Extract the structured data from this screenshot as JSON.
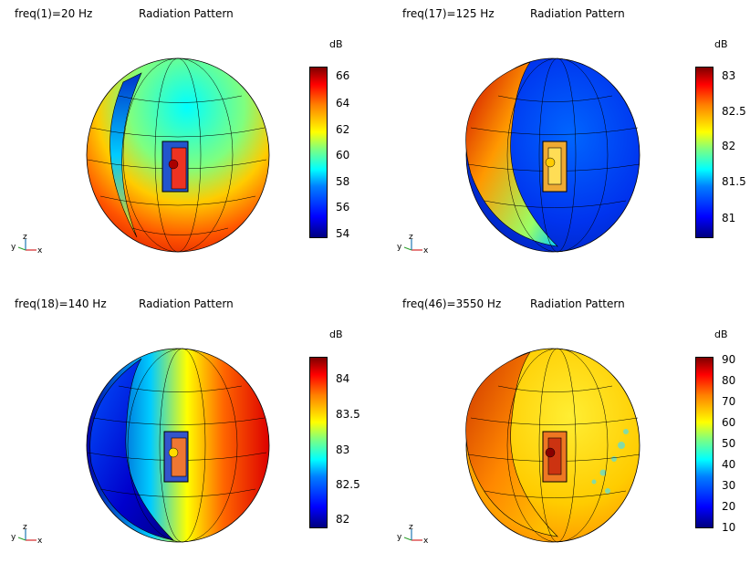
{
  "panels": [
    {
      "freq": "freq(1)=20 Hz",
      "title": "Radiation Pattern",
      "unit": "dB",
      "ticks": [
        "66",
        "64",
        "62",
        "60",
        "58",
        "56",
        "54"
      ]
    },
    {
      "freq": "freq(17)=125 Hz",
      "title": "Radiation Pattern",
      "unit": "dB",
      "ticks": [
        "83",
        "82.5",
        "82",
        "81.5",
        "81"
      ]
    },
    {
      "freq": "freq(18)=140 Hz",
      "title": "Radiation Pattern",
      "unit": "dB",
      "ticks": [
        "84",
        "83.5",
        "83",
        "82.5",
        "82"
      ]
    },
    {
      "freq": "freq(46)=3550 Hz",
      "title": "Radiation Pattern",
      "unit": "dB",
      "ticks": [
        "90",
        "80",
        "70",
        "60",
        "50",
        "40",
        "30",
        "20",
        "10"
      ]
    }
  ],
  "axes": {
    "x": "x",
    "y": "y",
    "z": "z"
  },
  "colors": {
    "xaxis": "#d62728",
    "yaxis": "#2ca02c",
    "zaxis": "#1f77b4"
  }
}
